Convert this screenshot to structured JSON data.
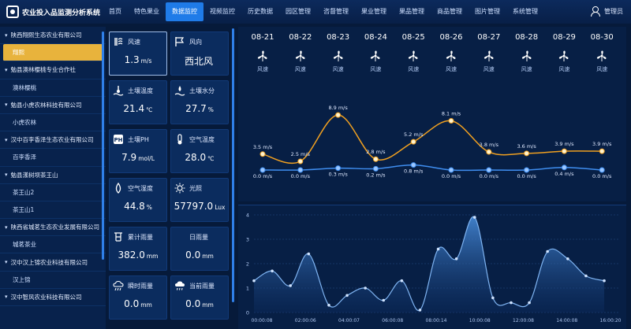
{
  "header": {
    "title": "农业投入品监测分析系统",
    "nav": [
      "首页",
      "特色果业",
      "数据监控",
      "视频监控",
      "历史数据",
      "园区管理",
      "咨督管理",
      "果业管理",
      "果品管理",
      "商品管理",
      "图片管理",
      "系统管理"
    ],
    "active_nav": 2,
    "user": "管理员"
  },
  "sidebar": {
    "items": [
      {
        "label": "陕西翔熙生态农业有限公司",
        "type": "group"
      },
      {
        "label": "翔熙",
        "type": "child",
        "selected": true
      },
      {
        "label": "勉县澳林樱桃专业合作社",
        "type": "group"
      },
      {
        "label": "澳林樱桃",
        "type": "child"
      },
      {
        "label": "勉县小虎农林科技有限公司",
        "type": "group"
      },
      {
        "label": "小虎农林",
        "type": "child"
      },
      {
        "label": "汉中百李香泽生态农业有限公司",
        "type": "group"
      },
      {
        "label": "百李香泽",
        "type": "child"
      },
      {
        "label": "勉县漾树坝茶王山",
        "type": "group"
      },
      {
        "label": "茶王山2",
        "type": "child"
      },
      {
        "label": "茶王山1",
        "type": "child"
      },
      {
        "label": "陕西省城茗生态农业发展有限公司",
        "type": "group"
      },
      {
        "label": "城茗茶业",
        "type": "child"
      },
      {
        "label": "汉中汉上锦农业科技有限公司",
        "type": "group"
      },
      {
        "label": "汉上锦",
        "type": "child"
      },
      {
        "label": "汉中智风农业科技有限公司",
        "type": "group"
      }
    ]
  },
  "cards": [
    {
      "label": "风速",
      "value": "1.3",
      "unit": "m/s",
      "icon": "wind-speed-icon"
    },
    {
      "label": "风向",
      "value": "西北风",
      "unit": "",
      "icon": "flag-icon"
    },
    {
      "label": "土壤温度",
      "value": "21.4",
      "unit": "℃",
      "icon": "soil-temperature-icon"
    },
    {
      "label": "土壤水分",
      "value": "27.7",
      "unit": "%",
      "icon": "soil-moisture-icon"
    },
    {
      "label": "土壤PH",
      "value": "7.9",
      "unit": "mol/L",
      "icon": "ph-icon"
    },
    {
      "label": "空气温度",
      "value": "28.0",
      "unit": "℃",
      "icon": "thermometer-icon"
    },
    {
      "label": "空气湿度",
      "value": "44.8",
      "unit": "%",
      "icon": "droplet-icon"
    },
    {
      "label": "光照",
      "value": "57797.0",
      "unit": "Lux",
      "icon": "sun-icon"
    },
    {
      "label": "累计雨量",
      "value": "382.0",
      "unit": "mm",
      "icon": "rain-gauge-icon"
    },
    {
      "label": "日雨量",
      "value": "0.0",
      "unit": "mm",
      "icon": ""
    },
    {
      "label": "瞬时雨量",
      "value": "0.0",
      "unit": "mm",
      "icon": "rain-cloud-icon"
    },
    {
      "label": "当前雨量",
      "value": "0.0",
      "unit": "mm",
      "icon": "cloud-rain-icon"
    }
  ],
  "forecast": {
    "label": "风速",
    "days": [
      "08-21",
      "08-22",
      "08-23",
      "08-24",
      "08-25",
      "08-26",
      "08-27",
      "08-28",
      "08-29",
      "08-30"
    ]
  },
  "chart_data": [
    {
      "type": "line",
      "x": [
        "08-21",
        "08-22",
        "08-23",
        "08-24",
        "08-25",
        "08-26",
        "08-27",
        "08-28",
        "08-29",
        "08-30"
      ],
      "series": [
        {
          "values": [
            3.5,
            2.5,
            8.9,
            2.8,
            5.2,
            8.1,
            3.8,
            3.6,
            3.9,
            3.9
          ],
          "labels": [
            "3.5 m/s",
            "2.5 m/s",
            "8.9 m/s",
            "2.8 m/s",
            "5.2 m/s",
            "8.1 m/s",
            "3.8 m/s",
            "3.6 m/s",
            "3.9 m/s",
            "3.9 m/s"
          ],
          "color": "#f0a020"
        },
        {
          "values": [
            0.0,
            0.0,
            0.3,
            0.2,
            0.8,
            0.0,
            0.0,
            0.0,
            0.4,
            0.0
          ],
          "labels": [
            "0.0 m/s",
            "0.0 m/s",
            "0.3 m/s",
            "0.2 m/s",
            "0.8 m/s",
            "0.0 m/s",
            "0.0 m/s",
            "0.0 m/s",
            "0.4 m/s",
            "0.0 m/s"
          ],
          "color": "#3f8ef0"
        }
      ],
      "grid": false
    },
    {
      "type": "area",
      "x_ticks": [
        "00:00:08",
        "02:00:06",
        "04:00:07",
        "06:00:08",
        "08:00:14",
        "10:00:08",
        "12:00:08",
        "14:00:08",
        "16:00:20"
      ],
      "y_ticks": [
        "0",
        "1",
        "2",
        "3",
        "4"
      ],
      "ylim": [
        0,
        4
      ],
      "xlim": [
        0,
        18
      ],
      "points": [
        [
          0,
          1.3
        ],
        [
          0.9,
          1.7
        ],
        [
          1.8,
          1.1
        ],
        [
          2.7,
          2.4
        ],
        [
          3.7,
          0.3
        ],
        [
          4.6,
          0.7
        ],
        [
          5.5,
          1.0
        ],
        [
          6.4,
          0.5
        ],
        [
          7.3,
          1.3
        ],
        [
          8.2,
          0.1
        ],
        [
          9.1,
          2.6
        ],
        [
          10.0,
          2.2
        ],
        [
          10.9,
          3.9
        ],
        [
          11.8,
          0.6
        ],
        [
          12.7,
          0.4
        ],
        [
          13.6,
          0.4
        ],
        [
          14.5,
          2.5
        ],
        [
          15.5,
          2.2
        ],
        [
          16.4,
          1.5
        ],
        [
          17.3,
          1.3
        ]
      ],
      "color": "#3a7fd0",
      "grid": true
    }
  ]
}
